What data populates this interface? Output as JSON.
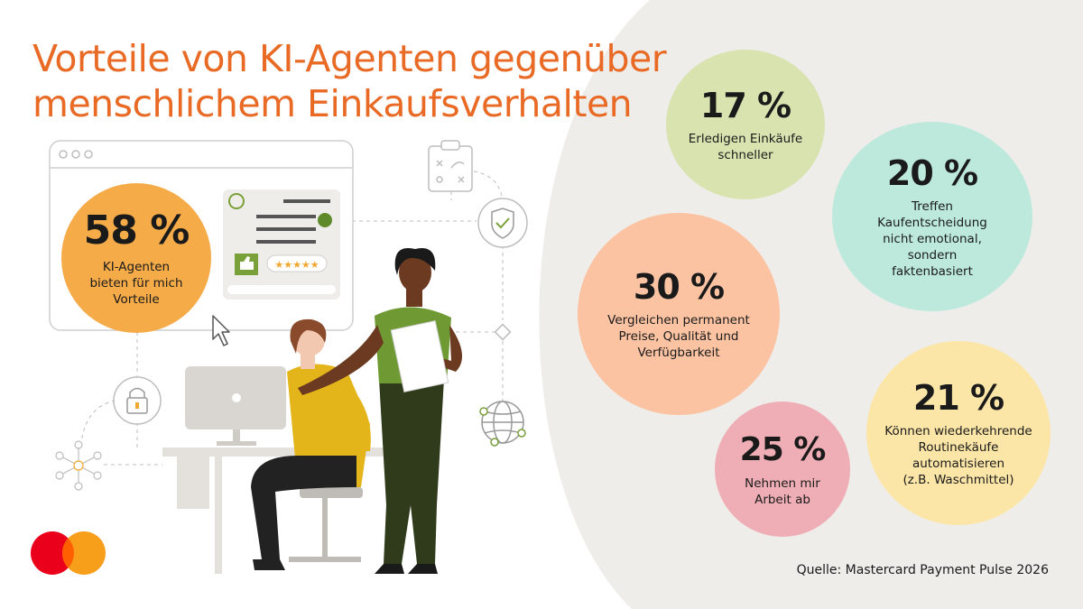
{
  "title": {
    "line1": "Vorteile von KI-Agenten gegenüber",
    "line2": "menschlichem Einkaufsverhalten"
  },
  "colors": {
    "title": "#e86a25",
    "background_shape": "#efedea",
    "mastercard_red": "#eb001b",
    "mastercard_orange": "#f79e1b",
    "stat_58": "#f5ab48",
    "stat_17": "#d8e3b0",
    "stat_20": "#bde9dd",
    "stat_30": "#fbc3a2",
    "stat_21": "#fbe6a7",
    "stat_25": "#efaeb5"
  },
  "main_stat": {
    "value": "58 %",
    "label": "KI-Agenten\nbieten für mich\nVorteile"
  },
  "stats": [
    {
      "value": "17 %",
      "label": "Erledigen Einkäufe\nschneller"
    },
    {
      "value": "20 %",
      "label": "Treffen\nKaufentscheidung\nnicht emotional,\nsondern\nfaktenbasiert"
    },
    {
      "value": "30 %",
      "label": "Vergleichen permanent\nPreise, Qualität und\nVerfügbarkeit"
    },
    {
      "value": "21 %",
      "label": "Können wiederkehrende\nRoutinekäufe\nautomatisieren\n(z.B. Waschmittel)"
    },
    {
      "value": "25 %",
      "label": "Nehmen mir\nArbeit ab"
    }
  ],
  "icons": [
    "clipboard-icon",
    "shield-check-icon",
    "padlock-icon",
    "globe-icon",
    "network-icon",
    "thumbs-up-icon",
    "cursor-icon",
    "mastercard-logo"
  ],
  "review_stars": "★★★★★",
  "source": "Quelle: Mastercard Payment Pulse 2026"
}
